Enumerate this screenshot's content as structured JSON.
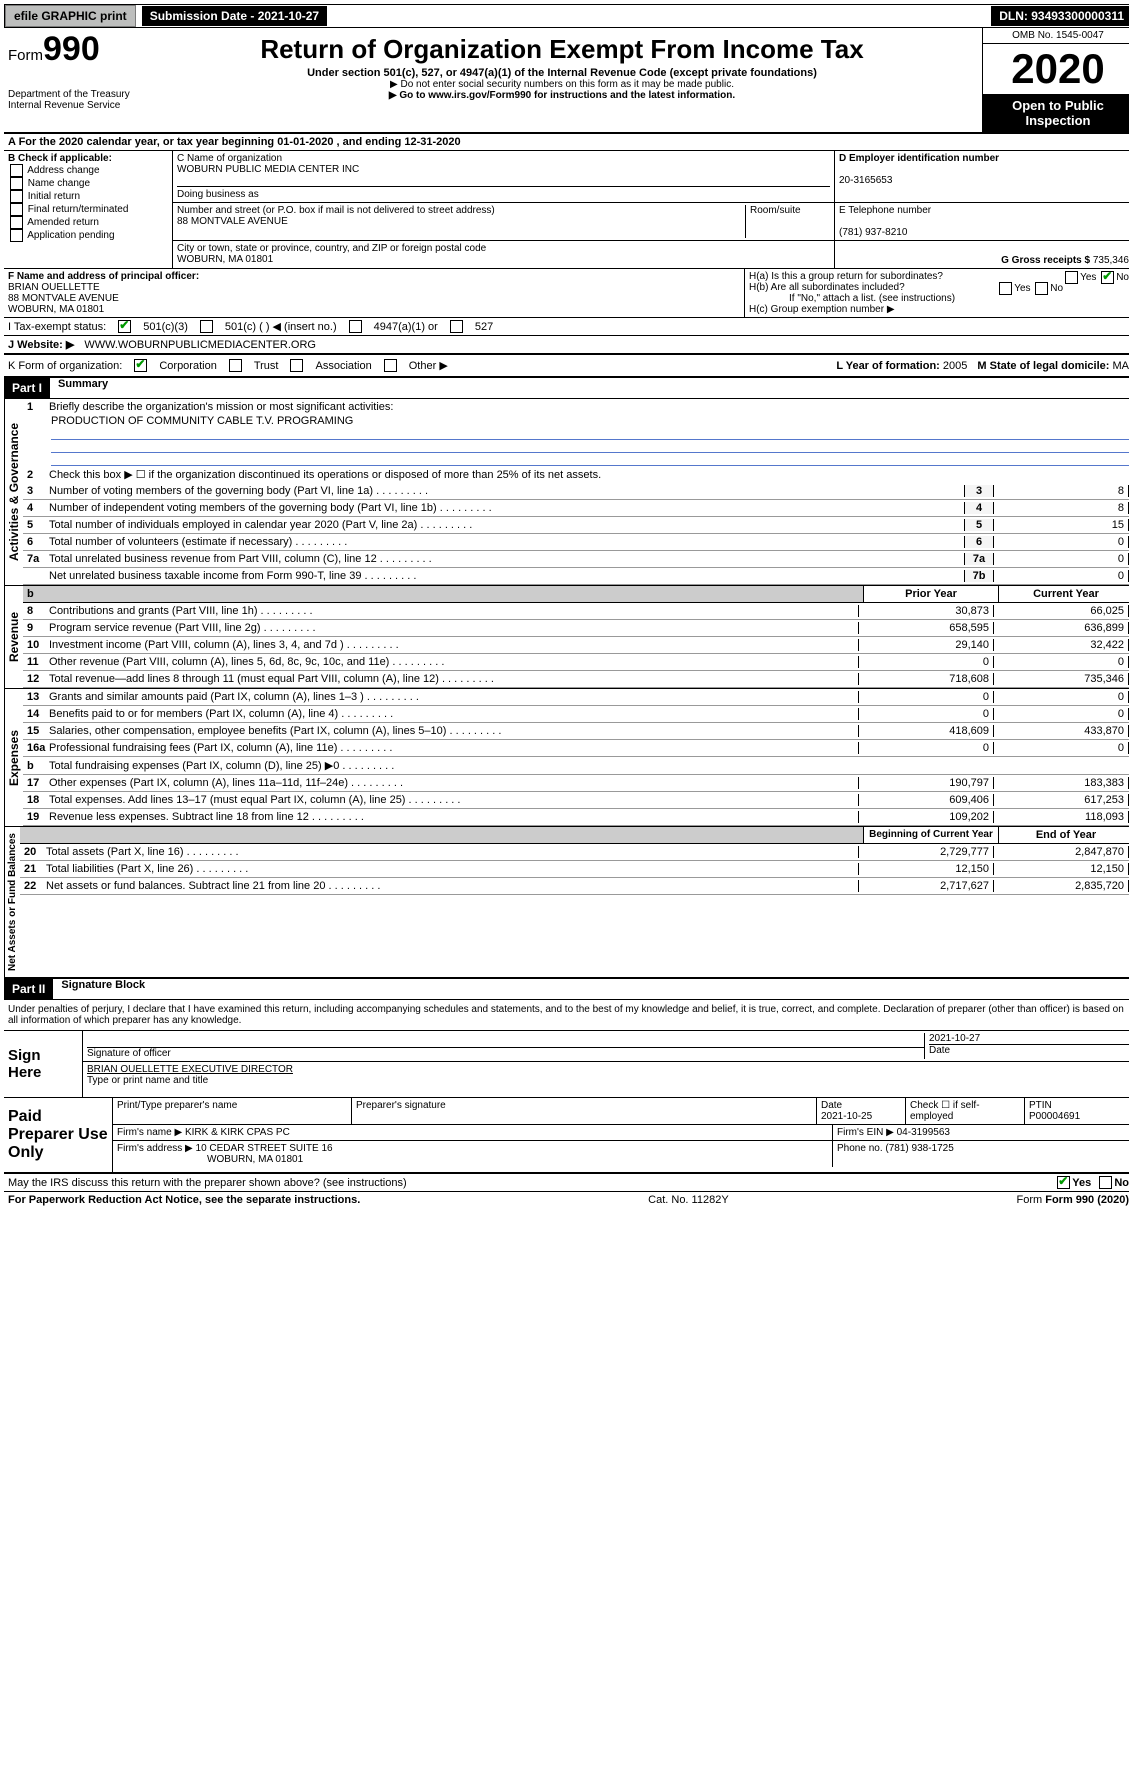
{
  "topbar": {
    "efile": "efile GRAPHIC print",
    "submission": "Submission Date - 2021-10-27",
    "dln": "DLN: 93493300000311"
  },
  "header": {
    "form_prefix": "Form",
    "form_num": "990",
    "title": "Return of Organization Exempt From Income Tax",
    "under": "Under section 501(c), 527, or 4947(a)(1) of the Internal Revenue Code (except private foundations)",
    "ssn": "▶ Do not enter social security numbers on this form as it may be made public.",
    "goto": "▶ Go to www.irs.gov/Form990 for instructions and the latest information.",
    "dept": "Department of the Treasury\nInternal Revenue Service",
    "omb": "OMB No. 1545-0047",
    "year": "2020",
    "open": "Open to Public Inspection"
  },
  "rowA": "A For the 2020 calendar year, or tax year beginning 01-01-2020    , and ending 12-31-2020",
  "colB": {
    "hdr": "B Check if applicable:",
    "items": [
      "Address change",
      "Name change",
      "Initial return",
      "Final return/terminated",
      "Amended return",
      "Application pending"
    ]
  },
  "orgC": {
    "name_lbl": "C Name of organization",
    "name": "WOBURN PUBLIC MEDIA CENTER INC",
    "dba_lbl": "Doing business as",
    "addr_lbl": "Number and street (or P.O. box if mail is not delivered to street address)",
    "room_lbl": "Room/suite",
    "addr": "88 MONTVALE AVENUE",
    "city_lbl": "City or town, state or province, country, and ZIP or foreign postal code",
    "city": "WOBURN, MA  01801"
  },
  "colD": {
    "lbl": "D Employer identification number",
    "val": "20-3165653"
  },
  "colE": {
    "lbl": "E Telephone number",
    "val": "(781) 937-8210"
  },
  "colG": {
    "lbl": "G Gross receipts $",
    "val": "735,346"
  },
  "colF": {
    "lbl": "F  Name and address of principal officer:",
    "name": "BRIAN OUELLETTE",
    "addr1": "88 MONTVALE AVENUE",
    "addr2": "WOBURN, MA  01801"
  },
  "colH": {
    "a": "H(a)  Is this a group return for subordinates?",
    "b": "H(b)  Are all subordinates included?",
    "note": "If \"No,\" attach a list. (see instructions)",
    "c": "H(c)  Group exemption number ▶",
    "yes": "Yes",
    "no": "No"
  },
  "rowI": {
    "lbl": "I     Tax-exempt status:",
    "c1": "501(c)(3)",
    "c2": "501(c) (  ) ◀ (insert no.)",
    "c3": "4947(a)(1) or",
    "c4": "527"
  },
  "rowJ": {
    "lbl": "J     Website: ▶",
    "val": "WWW.WOBURNPUBLICMEDIACENTER.ORG"
  },
  "rowK": {
    "lbl": "K Form of organization:",
    "corp": "Corporation",
    "trust": "Trust",
    "assoc": "Association",
    "other": "Other ▶"
  },
  "rowL": {
    "lbl": "L Year of formation:",
    "val": "2005"
  },
  "rowM": {
    "lbl": "M State of legal domicile:",
    "val": "MA"
  },
  "part1": {
    "hdr": "Part I",
    "title": "Summary",
    "q1": "Briefly describe the organization's mission or most significant activities:",
    "mission": "PRODUCTION OF COMMUNITY CABLE T.V. PROGRAMING",
    "q2": "Check this box ▶ ☐  if the organization discontinued its operations or disposed of more than 25% of its net assets.",
    "lines_gov": [
      {
        "n": "3",
        "t": "Number of voting members of the governing body (Part VI, line 1a)",
        "c": "3",
        "v": "8"
      },
      {
        "n": "4",
        "t": "Number of independent voting members of the governing body (Part VI, line 1b)",
        "c": "4",
        "v": "8"
      },
      {
        "n": "5",
        "t": "Total number of individuals employed in calendar year 2020 (Part V, line 2a)",
        "c": "5",
        "v": "15"
      },
      {
        "n": "6",
        "t": "Total number of volunteers (estimate if necessary)",
        "c": "6",
        "v": "0"
      },
      {
        "n": "7a",
        "t": "Total unrelated business revenue from Part VIII, column (C), line 12",
        "c": "7a",
        "v": "0"
      },
      {
        "n": "",
        "t": "Net unrelated business taxable income from Form 990-T, line 39",
        "c": "7b",
        "v": "0"
      }
    ],
    "col_hdr_prior": "Prior Year",
    "col_hdr_curr": "Current Year",
    "revenue": [
      {
        "n": "8",
        "t": "Contributions and grants (Part VIII, line 1h)",
        "p": "30,873",
        "c": "66,025"
      },
      {
        "n": "9",
        "t": "Program service revenue (Part VIII, line 2g)",
        "p": "658,595",
        "c": "636,899"
      },
      {
        "n": "10",
        "t": "Investment income (Part VIII, column (A), lines 3, 4, and 7d )",
        "p": "29,140",
        "c": "32,422"
      },
      {
        "n": "11",
        "t": "Other revenue (Part VIII, column (A), lines 5, 6d, 8c, 9c, 10c, and 11e)",
        "p": "0",
        "c": "0"
      },
      {
        "n": "12",
        "t": "Total revenue—add lines 8 through 11 (must equal Part VIII, column (A), line 12)",
        "p": "718,608",
        "c": "735,346"
      }
    ],
    "expenses": [
      {
        "n": "13",
        "t": "Grants and similar amounts paid (Part IX, column (A), lines 1–3 )",
        "p": "0",
        "c": "0"
      },
      {
        "n": "14",
        "t": "Benefits paid to or for members (Part IX, column (A), line 4)",
        "p": "0",
        "c": "0"
      },
      {
        "n": "15",
        "t": "Salaries, other compensation, employee benefits (Part IX, column (A), lines 5–10)",
        "p": "418,609",
        "c": "433,870"
      },
      {
        "n": "16a",
        "t": "Professional fundraising fees (Part IX, column (A), line 11e)",
        "p": "0",
        "c": "0"
      },
      {
        "n": "b",
        "t": "Total fundraising expenses (Part IX, column (D), line 25) ▶0",
        "p": "",
        "c": "",
        "shaded": true
      },
      {
        "n": "17",
        "t": "Other expenses (Part IX, column (A), lines 11a–11d, 11f–24e)",
        "p": "190,797",
        "c": "183,383"
      },
      {
        "n": "18",
        "t": "Total expenses. Add lines 13–17 (must equal Part IX, column (A), line 25)",
        "p": "609,406",
        "c": "617,253"
      },
      {
        "n": "19",
        "t": "Revenue less expenses. Subtract line 18 from line 12",
        "p": "109,202",
        "c": "118,093"
      }
    ],
    "col_hdr_beg": "Beginning of Current Year",
    "col_hdr_end": "End of Year",
    "netassets": [
      {
        "n": "20",
        "t": "Total assets (Part X, line 16)",
        "p": "2,729,777",
        "c": "2,847,870"
      },
      {
        "n": "21",
        "t": "Total liabilities (Part X, line 26)",
        "p": "12,150",
        "c": "12,150"
      },
      {
        "n": "22",
        "t": "Net assets or fund balances. Subtract line 21 from line 20",
        "p": "2,717,627",
        "c": "2,835,720"
      }
    ]
  },
  "tabs": {
    "gov": "Activities & Governance",
    "rev": "Revenue",
    "exp": "Expenses",
    "net": "Net Assets or Fund Balances"
  },
  "part2": {
    "hdr": "Part II",
    "title": "Signature Block",
    "penalty": "Under penalties of perjury, I declare that I have examined this return, including accompanying schedules and statements, and to the best of my knowledge and belief, it is true, correct, and complete. Declaration of preparer (other than officer) is based on all information of which preparer has any knowledge.",
    "sign_here": "Sign Here",
    "sig_officer": "Signature of officer",
    "sig_date": "2021-10-27",
    "date_lbl": "Date",
    "officer_name": "BRIAN OUELLETTE EXECUTIVE DIRECTOR",
    "type_name": "Type or print name and title",
    "paid": "Paid Preparer Use Only",
    "prep_name_lbl": "Print/Type preparer's name",
    "prep_sig_lbl": "Preparer's signature",
    "prep_date": "2021-10-25",
    "check_self": "Check ☐ if self-employed",
    "ptin_lbl": "PTIN",
    "ptin": "P00004691",
    "firm_name_lbl": "Firm's name    ▶",
    "firm_name": "KIRK & KIRK CPAS PC",
    "firm_ein_lbl": "Firm's EIN ▶",
    "firm_ein": "04-3199563",
    "firm_addr_lbl": "Firm's address ▶",
    "firm_addr1": "10 CEDAR STREET SUITE 16",
    "firm_addr2": "WOBURN, MA  01801",
    "phone_lbl": "Phone no.",
    "phone": "(781) 938-1725",
    "discuss": "May the IRS discuss this return with the preparer shown above? (see instructions)"
  },
  "footer": {
    "pra": "For Paperwork Reduction Act Notice, see the separate instructions.",
    "cat": "Cat. No. 11282Y",
    "form": "Form 990 (2020)"
  }
}
